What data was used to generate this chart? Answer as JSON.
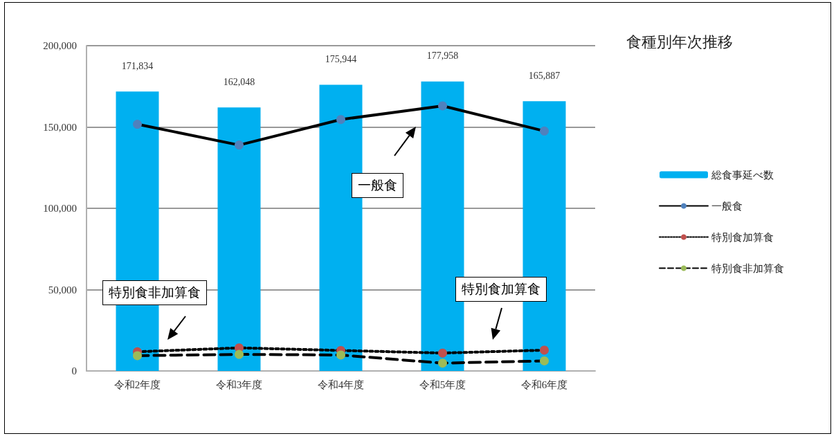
{
  "chart_data": {
    "type": "bar",
    "title": "食種別年次推移",
    "categories": [
      "令和2年度",
      "令和3年度",
      "令和4年度",
      "令和5年度",
      "令和6年度"
    ],
    "series": [
      {
        "name": "総食事延べ数",
        "color": "#00b0f0",
        "values": [
          171834,
          162048,
          175944,
          177958,
          165887
        ],
        "value_labels": [
          "171,834",
          "162,048",
          "175,944",
          "177,958",
          "165,887"
        ]
      },
      {
        "name": "一般食",
        "type": "line",
        "color": "#000000",
        "colors": [
          "#4f81bd",
          "#4f81bd",
          "#4f81bd",
          "#4f81bd",
          "#4f81bd"
        ],
        "line_style": "solid",
        "values": [
          151700,
          138900,
          154600,
          163000,
          147500
        ]
      },
      {
        "name": "特別食加算食",
        "type": "line",
        "color": "#000000",
        "colors": [
          "#c0504d",
          "#c0504d",
          "#c0504d",
          "#c0504d",
          "#c0504d"
        ],
        "line_style": "dotted",
        "values": [
          11800,
          14200,
          12600,
          11000,
          12800
        ]
      },
      {
        "name": "特別食非加算食",
        "type": "line",
        "color": "#000000",
        "colors": [
          "#9bbb59",
          "#9bbb59",
          "#9bbb59",
          "#9bbb59",
          "#9bbb59"
        ],
        "line_style": "dashed",
        "values": [
          9400,
          10200,
          9800,
          4800,
          6200
        ]
      }
    ],
    "ylim": [
      0,
      200000
    ],
    "yticks": [
      0,
      {
        "value": 50000,
        "label": "50,000"
      },
      {
        "value": 100000,
        "label": "100,000"
      },
      {
        "value": 150000,
        "label": "150,000"
      },
      {
        "value": 200000,
        "label": "200,000"
      }
    ],
    "grid": "y",
    "legend": "right",
    "marker": "circle",
    "annotations": [
      "一般食",
      "特別食非加算食",
      "特別食加算食"
    ]
  }
}
